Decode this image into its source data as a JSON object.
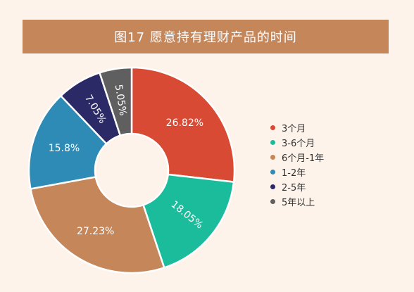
{
  "title": "图17 愿意持有理财产品的时间",
  "chart_data": {
    "type": "pie",
    "variant": "donut",
    "title": "图17 愿意持有理财产品的时间",
    "legend_position": "right",
    "slices": [
      {
        "label": "3个月",
        "value": 26.82,
        "display": "26.82%",
        "color": "#d84a33"
      },
      {
        "label": "3-6个月",
        "value": 18.05,
        "display": "18.05%",
        "color": "#1abc9c"
      },
      {
        "label": "6个月-1年",
        "value": 27.23,
        "display": "27.23%",
        "color": "#c5865a"
      },
      {
        "label": "1-2年",
        "value": 15.8,
        "display": "15.8%",
        "color": "#2e8bb5"
      },
      {
        "label": "2-5年",
        "value": 7.05,
        "display": "7.05%",
        "color": "#2c2a66"
      },
      {
        "label": "5年以上",
        "value": 5.05,
        "display": "5.05%",
        "color": "#5f5f5f"
      }
    ]
  }
}
